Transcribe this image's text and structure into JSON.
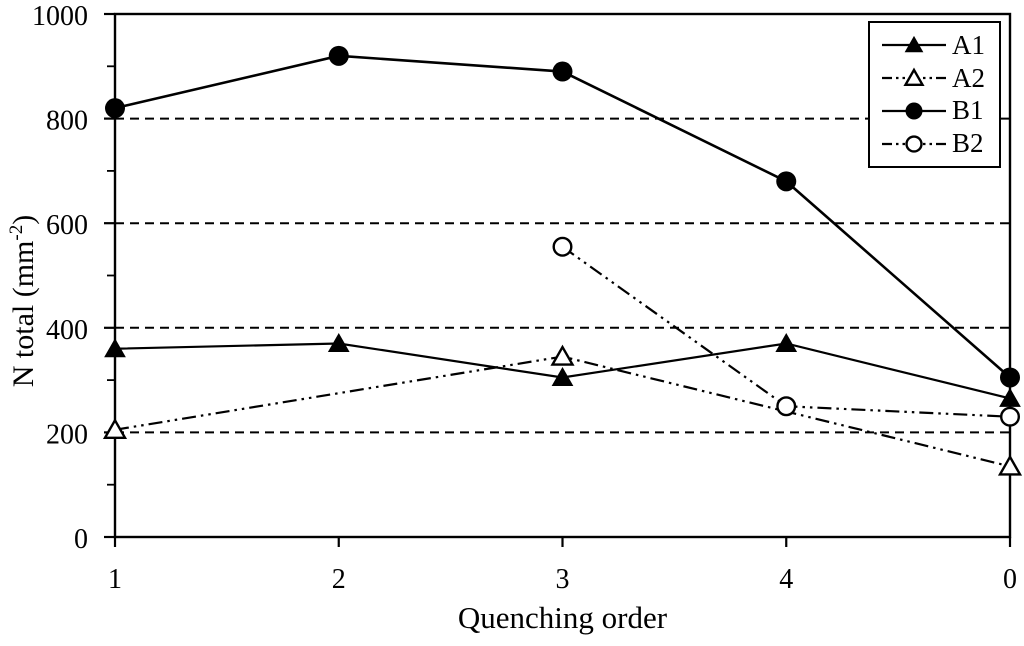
{
  "chart_data": {
    "type": "line",
    "title": "",
    "xlabel": "Quenching order",
    "ylabel": "N total (mm-2)",
    "ylabel_parts": {
      "pre": "N total (mm",
      "sup": "-2",
      "post": ")"
    },
    "categories": [
      "1",
      "2",
      "3",
      "4",
      "0"
    ],
    "ylim": [
      0,
      1000
    ],
    "y_major_ticks": [
      0,
      200,
      400,
      600,
      800,
      1000
    ],
    "y_minor_step": 100,
    "gridlines": {
      "horizontal_at": [
        200,
        400,
        600,
        800
      ],
      "style": "dashed"
    },
    "legend_position": "top-right-inside",
    "colors": {
      "foreground": "#000000",
      "background": "#ffffff"
    },
    "series": [
      {
        "name": "A1",
        "line": "solid",
        "marker": "triangle-filled",
        "x": [
          "1",
          "2",
          "3",
          "4",
          "0"
        ],
        "values": [
          360,
          370,
          305,
          370,
          265
        ]
      },
      {
        "name": "A2",
        "line": "dash-dot-dot",
        "marker": "triangle-open",
        "x": [
          "1",
          "3",
          "0"
        ],
        "values": [
          205,
          345,
          135
        ]
      },
      {
        "name": "B1",
        "line": "solid",
        "marker": "circle-filled",
        "x": [
          "1",
          "2",
          "3",
          "4",
          "0"
        ],
        "values": [
          820,
          920,
          890,
          680,
          305
        ]
      },
      {
        "name": "B2",
        "line": "dash-dot-dot",
        "marker": "circle-open",
        "x": [
          "3",
          "4",
          "0"
        ],
        "values": [
          555,
          250,
          230
        ]
      }
    ]
  }
}
